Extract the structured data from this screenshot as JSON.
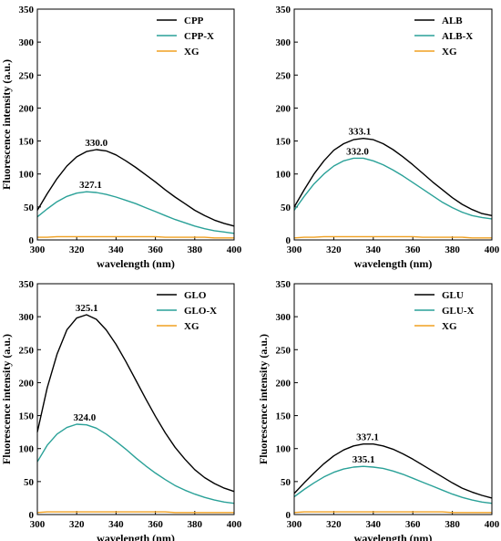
{
  "colors": {
    "black": "#000000",
    "teal": "#2aa198",
    "orange": "#f0a020"
  },
  "chart_data": [
    {
      "type": "line",
      "xlabel": "wavelength (nm)",
      "ylabel": "Fluorescence intensity (a.u.)",
      "xlim": [
        300,
        400
      ],
      "ylim": [
        0,
        350
      ],
      "xticks": [
        300,
        320,
        340,
        360,
        380,
        400
      ],
      "yticks": [
        0,
        50,
        100,
        150,
        200,
        250,
        300,
        350
      ],
      "legend_position": "top-right",
      "x": [
        300,
        305,
        310,
        315,
        320,
        325,
        330,
        335,
        340,
        345,
        350,
        355,
        360,
        365,
        370,
        375,
        380,
        385,
        390,
        395,
        400
      ],
      "series": [
        {
          "name": "CPP",
          "color": "black",
          "peak_label": "330.0",
          "peak_x": 330.0,
          "values": [
            45,
            70,
            93,
            112,
            126,
            134,
            137,
            135,
            129,
            120,
            110,
            99,
            88,
            76,
            65,
            55,
            45,
            37,
            30,
            25,
            21
          ]
        },
        {
          "name": "CPP-X",
          "color": "teal",
          "peak_label": "327.1",
          "peak_x": 327.1,
          "values": [
            35,
            47,
            58,
            66,
            71,
            73,
            72,
            69,
            65,
            60,
            55,
            49,
            43,
            37,
            31,
            26,
            21,
            17,
            14,
            12,
            10
          ]
        },
        {
          "name": "XG",
          "color": "orange",
          "values": [
            4,
            4,
            5,
            5,
            5,
            5,
            5,
            5,
            5,
            5,
            5,
            5,
            5,
            4,
            4,
            4,
            4,
            4,
            3,
            3,
            3
          ]
        }
      ]
    },
    {
      "type": "line",
      "xlabel": "wavelength (nm)",
      "ylabel": "",
      "xlim": [
        300,
        400
      ],
      "ylim": [
        0,
        350
      ],
      "xticks": [
        300,
        320,
        340,
        360,
        380,
        400
      ],
      "yticks": [
        0,
        50,
        100,
        150,
        200,
        250,
        300,
        350
      ],
      "legend_position": "top-right",
      "x": [
        300,
        305,
        310,
        315,
        320,
        325,
        330,
        335,
        340,
        345,
        350,
        355,
        360,
        365,
        370,
        375,
        380,
        385,
        390,
        395,
        400
      ],
      "series": [
        {
          "name": "ALB",
          "color": "black",
          "peak_label": "333.1",
          "peak_x": 333.1,
          "values": [
            50,
            76,
            100,
            120,
            136,
            146,
            152,
            154,
            152,
            146,
            137,
            126,
            114,
            101,
            88,
            76,
            64,
            54,
            46,
            40,
            37
          ]
        },
        {
          "name": "ALB-X",
          "color": "teal",
          "peak_label": "332.0",
          "peak_x": 332.0,
          "values": [
            45,
            66,
            85,
            100,
            112,
            120,
            124,
            124,
            120,
            114,
            106,
            97,
            87,
            77,
            67,
            57,
            49,
            42,
            37,
            34,
            32
          ]
        },
        {
          "name": "XG",
          "color": "orange",
          "values": [
            3,
            4,
            4,
            5,
            5,
            5,
            5,
            5,
            5,
            5,
            5,
            5,
            5,
            4,
            4,
            4,
            4,
            4,
            3,
            3,
            3
          ]
        }
      ]
    },
    {
      "type": "line",
      "xlabel": "wavelength (nm)",
      "ylabel": "Fluorescence intensity (a.u.)",
      "xlim": [
        300,
        400
      ],
      "ylim": [
        0,
        350
      ],
      "xticks": [
        300,
        320,
        340,
        360,
        380,
        400
      ],
      "yticks": [
        0,
        50,
        100,
        150,
        200,
        250,
        300,
        350
      ],
      "legend_position": "top-right",
      "x": [
        300,
        305,
        310,
        315,
        320,
        325,
        330,
        335,
        340,
        345,
        350,
        355,
        360,
        365,
        370,
        375,
        380,
        385,
        390,
        395,
        400
      ],
      "series": [
        {
          "name": "GLO",
          "color": "black",
          "peak_label": "325.1",
          "peak_x": 325.1,
          "values": [
            125,
            192,
            243,
            280,
            298,
            303,
            296,
            280,
            258,
            232,
            204,
            176,
            149,
            124,
            102,
            84,
            68,
            56,
            47,
            40,
            35
          ]
        },
        {
          "name": "GLO-X",
          "color": "teal",
          "peak_label": "324.0",
          "peak_x": 324.0,
          "values": [
            80,
            105,
            122,
            132,
            137,
            136,
            131,
            122,
            111,
            99,
            86,
            74,
            63,
            53,
            44,
            37,
            31,
            26,
            22,
            19,
            17
          ]
        },
        {
          "name": "XG",
          "color": "orange",
          "values": [
            3,
            4,
            4,
            4,
            4,
            4,
            4,
            4,
            4,
            4,
            4,
            4,
            4,
            4,
            3,
            3,
            3,
            3,
            3,
            3,
            3
          ]
        }
      ]
    },
    {
      "type": "line",
      "xlabel": "wavelength (nm)",
      "ylabel": "Fluorescence intensity (a.u.)",
      "xlim": [
        300,
        400
      ],
      "ylim": [
        0,
        350
      ],
      "xticks": [
        300,
        320,
        340,
        360,
        380,
        400
      ],
      "yticks": [
        0,
        50,
        100,
        150,
        200,
        250,
        300,
        350
      ],
      "legend_position": "top-right",
      "x": [
        300,
        305,
        310,
        315,
        320,
        325,
        330,
        335,
        340,
        345,
        350,
        355,
        360,
        365,
        370,
        375,
        380,
        385,
        390,
        395,
        400
      ],
      "series": [
        {
          "name": "GLU",
          "color": "black",
          "peak_label": "337.1",
          "peak_x": 337.1,
          "values": [
            32,
            48,
            63,
            77,
            89,
            98,
            104,
            107,
            107,
            104,
            99,
            92,
            84,
            75,
            66,
            57,
            48,
            40,
            34,
            29,
            25
          ]
        },
        {
          "name": "GLU-X",
          "color": "teal",
          "peak_label": "335.1",
          "peak_x": 335.1,
          "values": [
            27,
            38,
            48,
            57,
            64,
            69,
            72,
            73,
            72,
            70,
            66,
            61,
            55,
            49,
            43,
            37,
            31,
            26,
            22,
            19,
            17
          ]
        },
        {
          "name": "XG",
          "color": "orange",
          "values": [
            3,
            4,
            4,
            4,
            4,
            4,
            4,
            4,
            4,
            4,
            4,
            4,
            4,
            4,
            4,
            4,
            3,
            3,
            3,
            3,
            3
          ]
        }
      ]
    }
  ]
}
